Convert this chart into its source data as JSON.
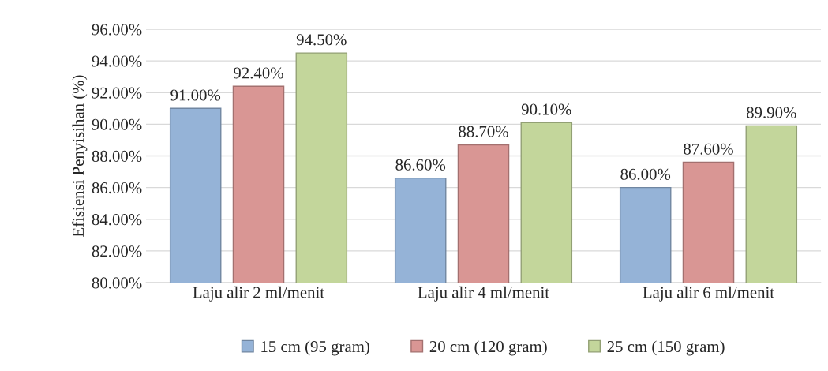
{
  "chart_data": {
    "type": "bar",
    "ylabel": "Efisiensi Penyisihan (%)",
    "categories": [
      "Laju alir 2 ml/menit",
      "Laju alir 4 ml/menit",
      "Laju alir 6 ml/menit"
    ],
    "series": [
      {
        "name": "15 cm (95 gram)",
        "color": "#95b3d7",
        "values": [
          91.0,
          86.6,
          86.0
        ],
        "value_labels": [
          "91.00%",
          "86.60%",
          "86.00%"
        ]
      },
      {
        "name": "20 cm (120 gram)",
        "color": "#d99694",
        "values": [
          92.4,
          88.7,
          87.6
        ],
        "value_labels": [
          "92.40%",
          "88.70%",
          "87.60%"
        ]
      },
      {
        "name": "25 cm (150 gram)",
        "color": "#c3d69b",
        "values": [
          94.5,
          90.1,
          89.9
        ],
        "value_labels": [
          "94.50%",
          "90.10%",
          "89.90%"
        ]
      }
    ],
    "ylim": [
      80,
      96
    ],
    "yticks": [
      {
        "value": 80,
        "label": "80.00%"
      },
      {
        "value": 82,
        "label": "82.00%"
      },
      {
        "value": 84,
        "label": "84.00%"
      },
      {
        "value": 86,
        "label": "86.00%"
      },
      {
        "value": 88,
        "label": "88.00%"
      },
      {
        "value": 90,
        "label": "90.00%"
      },
      {
        "value": 92,
        "label": "92.00%"
      },
      {
        "value": 94,
        "label": "94.00%"
      },
      {
        "value": 96,
        "label": "96.00%"
      }
    ],
    "grid": "y",
    "legend": "bottom"
  }
}
